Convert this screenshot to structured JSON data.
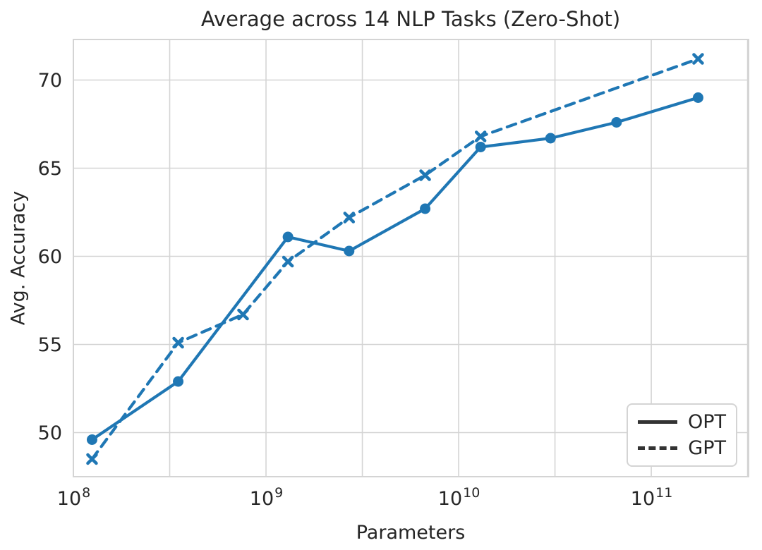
{
  "chart_data": {
    "type": "line",
    "title": "Average across 14 NLP Tasks (Zero-Shot)",
    "xlabel": "Parameters",
    "ylabel": "Avg. Accuracy",
    "x_scale": "log",
    "xlim": [
      100000000.0,
      320000000000.0
    ],
    "ylim": [
      47.5,
      72.3
    ],
    "grid": true,
    "x_grid_log_positions": [
      8,
      8.5,
      9,
      9.5,
      10,
      10.5,
      11,
      11.5
    ],
    "x_ticks": [
      {
        "base": "10",
        "exp": "8",
        "value": 100000000.0
      },
      {
        "base": "10",
        "exp": "9",
        "value": 1000000000.0
      },
      {
        "base": "10",
        "exp": "10",
        "value": 10000000000.0
      },
      {
        "base": "10",
        "exp": "11",
        "value": 100000000000.0
      }
    ],
    "y_ticks": [
      50,
      55,
      60,
      65,
      70
    ],
    "colors": {
      "series": "#1f77b4",
      "grid": "#d4d4d4",
      "text": "#262626",
      "legend_line": "#333333",
      "background": "#ffffff"
    },
    "series": [
      {
        "name": "OPT",
        "line": "solid",
        "marker": "circle",
        "x": [
          125000000.0,
          350000000.0,
          1300000000.0,
          2700000000.0,
          6700000000.0,
          13000000000.0,
          30000000000.0,
          66000000000.0,
          175000000000.0
        ],
        "y": [
          49.6,
          52.9,
          61.1,
          60.3,
          62.7,
          66.2,
          66.7,
          67.6,
          69.0
        ]
      },
      {
        "name": "GPT",
        "line": "dashed",
        "marker": "x",
        "x": [
          125000000.0,
          350000000.0,
          760000000.0,
          1300000000.0,
          2700000000.0,
          6700000000.0,
          13000000000.0,
          175000000000.0
        ],
        "y": [
          48.5,
          55.1,
          56.7,
          59.7,
          62.2,
          64.6,
          66.8,
          71.2
        ]
      }
    ],
    "legend": {
      "position": "lower right",
      "entries": [
        {
          "label": "OPT",
          "line": "solid"
        },
        {
          "label": "GPT",
          "line": "dashed"
        }
      ]
    }
  }
}
